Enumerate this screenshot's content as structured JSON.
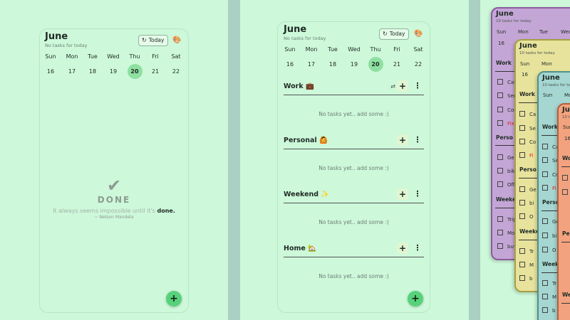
{
  "month": "June",
  "no_tasks": "No tasks for today",
  "today_label": "Today",
  "weekdays": [
    "Sun",
    "Mon",
    "Tue",
    "Wed",
    "Thu",
    "Fri",
    "Sat"
  ],
  "dates": [
    "16",
    "17",
    "18",
    "19",
    "20",
    "21",
    "22"
  ],
  "selected_date": "20",
  "done": {
    "word": "DONE",
    "quote_text": "It always seems impossible until it's",
    "quote_emph": "done.",
    "author": "~ Nelson Mandela"
  },
  "sections": [
    {
      "title": "Work 💼",
      "empty": "No tasks yet.. add some :)"
    },
    {
      "title": "Personal 🙆",
      "empty": "No tasks yet.. add some :)"
    },
    {
      "title": "Weekend ✨",
      "empty": "No tasks yet.. add some :)"
    },
    {
      "title": "Home 🏡",
      "empty": "No tasks yet.. add some :)"
    }
  ],
  "stack": {
    "month": "June",
    "sub": "10 tasks for today",
    "days": [
      "Sun",
      "Mon",
      "Tue",
      "Wed"
    ],
    "num": "16",
    "work_label": "Work",
    "personal_label": "Perso",
    "weekend_label": "Weeke",
    "card1_tasks": [
      "Cal",
      "Sen",
      "Cor",
      "Fix"
    ],
    "card1_personal": [
      "Get",
      "bik",
      "Off"
    ],
    "card1_weekend": [
      "Trip",
      "Mo",
      "buy"
    ],
    "card2_tasks": [
      "Ca",
      "Se",
      "Co",
      "Fi"
    ],
    "card2_personal": [
      "Ge",
      "bi",
      "O"
    ],
    "card2_weekend": [
      "Tr",
      "M",
      "b"
    ],
    "colors": {
      "purple": "#c4a6d6",
      "yellow": "#e8e39c",
      "teal": "#a5d6d1",
      "orange": "#f2a27f"
    }
  },
  "colors": {
    "background": "#cdf8da",
    "accent": "#57d27a",
    "selected": "#8ee0a1"
  }
}
